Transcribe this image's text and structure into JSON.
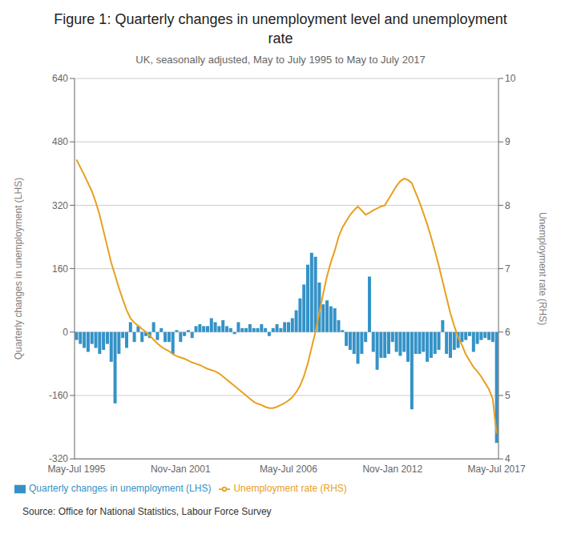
{
  "chart_data": {
    "type": "bar",
    "title": "Figure 1: Quarterly changes in unemployment level and unemployment\nrate",
    "subtitle": "UK, seasonally adjusted, May to July 1995 to May to July 2017",
    "source": "Source: Office for National Statistics, Labour Force Survey",
    "y_label": "Quarterly changes in unemployment (LHS)",
    "y2_label": "Unemployment rate (RHS)",
    "ylim": [
      -320,
      640
    ],
    "yticks": [
      -320,
      -160,
      0,
      160,
      320,
      480,
      640
    ],
    "y2lim": [
      4,
      10
    ],
    "y2ticks": [
      4,
      5,
      6,
      7,
      8,
      9,
      10
    ],
    "grid": true,
    "legend": "lower left",
    "categories": [
      "May-Jul 1995",
      null,
      null,
      null,
      null,
      null,
      null,
      null,
      null,
      null,
      null,
      null,
      null,
      null,
      null,
      null,
      null,
      null,
      null,
      null,
      null,
      null,
      null,
      null,
      null,
      null,
      null,
      "Nov-Jan 2001",
      null,
      null,
      null,
      null,
      null,
      null,
      null,
      null,
      null,
      null,
      null,
      null,
      null,
      null,
      null,
      null,
      null,
      null,
      null,
      null,
      null,
      null,
      null,
      null,
      null,
      null,
      null,
      "May-Jul 2006",
      null,
      null,
      null,
      null,
      null,
      null,
      null,
      null,
      null,
      null,
      null,
      null,
      null,
      null,
      null,
      null,
      null,
      null,
      null,
      null,
      null,
      null,
      null,
      null,
      null,
      null,
      "Nov-Jan 2012",
      null,
      null,
      null,
      null,
      null,
      null,
      null,
      null,
      null,
      null,
      null,
      null,
      null,
      null,
      null,
      null,
      null,
      null,
      null,
      null,
      null,
      null,
      null,
      null,
      null,
      null,
      "May-Jul 2017"
    ],
    "series": [
      {
        "name": "Quarterly changes in unemployment (LHS)",
        "type": "bar",
        "color": "#3492C7",
        "values": [
          -20,
          -30,
          -40,
          -50,
          -30,
          -40,
          -55,
          -45,
          -30,
          -75,
          -180,
          -55,
          -15,
          -40,
          25,
          -25,
          15,
          -25,
          -10,
          -15,
          25,
          -20,
          10,
          -25,
          -25,
          -55,
          5,
          -25,
          -10,
          5,
          -15,
          15,
          20,
          15,
          15,
          35,
          25,
          15,
          30,
          15,
          10,
          -5,
          25,
          10,
          10,
          20,
          10,
          10,
          20,
          10,
          -10,
          10,
          20,
          10,
          25,
          25,
          35,
          55,
          85,
          120,
          170,
          200,
          190,
          125,
          70,
          80,
          65,
          60,
          30,
          5,
          -35,
          -45,
          -55,
          -80,
          -55,
          -25,
          140,
          -50,
          -95,
          -65,
          -65,
          -55,
          -25,
          -50,
          -60,
          -50,
          -75,
          -195,
          -55,
          -55,
          -50,
          -75,
          -65,
          -55,
          -45,
          30,
          -55,
          -65,
          -45,
          -40,
          -25,
          -20,
          -10,
          -50,
          -30,
          -20,
          -15,
          -20,
          -25,
          -280
        ]
      },
      {
        "name": "Unemployment rate (RHS)",
        "type": "line",
        "axis": "y2",
        "color": "#E8A020",
        "values": [
          8.72,
          8.6,
          8.48,
          8.35,
          8.22,
          8.05,
          7.85,
          7.6,
          7.35,
          7.1,
          6.9,
          6.7,
          6.52,
          6.35,
          6.22,
          6.15,
          6.1,
          6.05,
          6.0,
          5.95,
          5.88,
          5.82,
          5.77,
          5.73,
          5.7,
          5.65,
          5.62,
          5.6,
          5.58,
          5.55,
          5.52,
          5.5,
          5.48,
          5.45,
          5.42,
          5.4,
          5.38,
          5.35,
          5.3,
          5.25,
          5.2,
          5.15,
          5.1,
          5.05,
          5.0,
          4.95,
          4.9,
          4.87,
          4.85,
          4.82,
          4.8,
          4.8,
          4.82,
          4.85,
          4.88,
          4.92,
          4.97,
          5.05,
          5.15,
          5.3,
          5.5,
          5.75,
          6.0,
          6.3,
          6.6,
          6.88,
          7.1,
          7.28,
          7.5,
          7.65,
          7.75,
          7.85,
          7.92,
          7.98,
          7.92,
          7.85,
          7.88,
          7.92,
          7.95,
          7.98,
          8.0,
          8.1,
          8.2,
          8.3,
          8.38,
          8.42,
          8.4,
          8.35,
          8.2,
          8.05,
          7.88,
          7.7,
          7.5,
          7.28,
          7.05,
          6.8,
          6.55,
          6.3,
          6.1,
          5.92,
          5.8,
          5.65,
          5.55,
          5.45,
          5.38,
          5.3,
          5.2,
          5.1,
          4.95,
          4.4
        ]
      }
    ]
  }
}
